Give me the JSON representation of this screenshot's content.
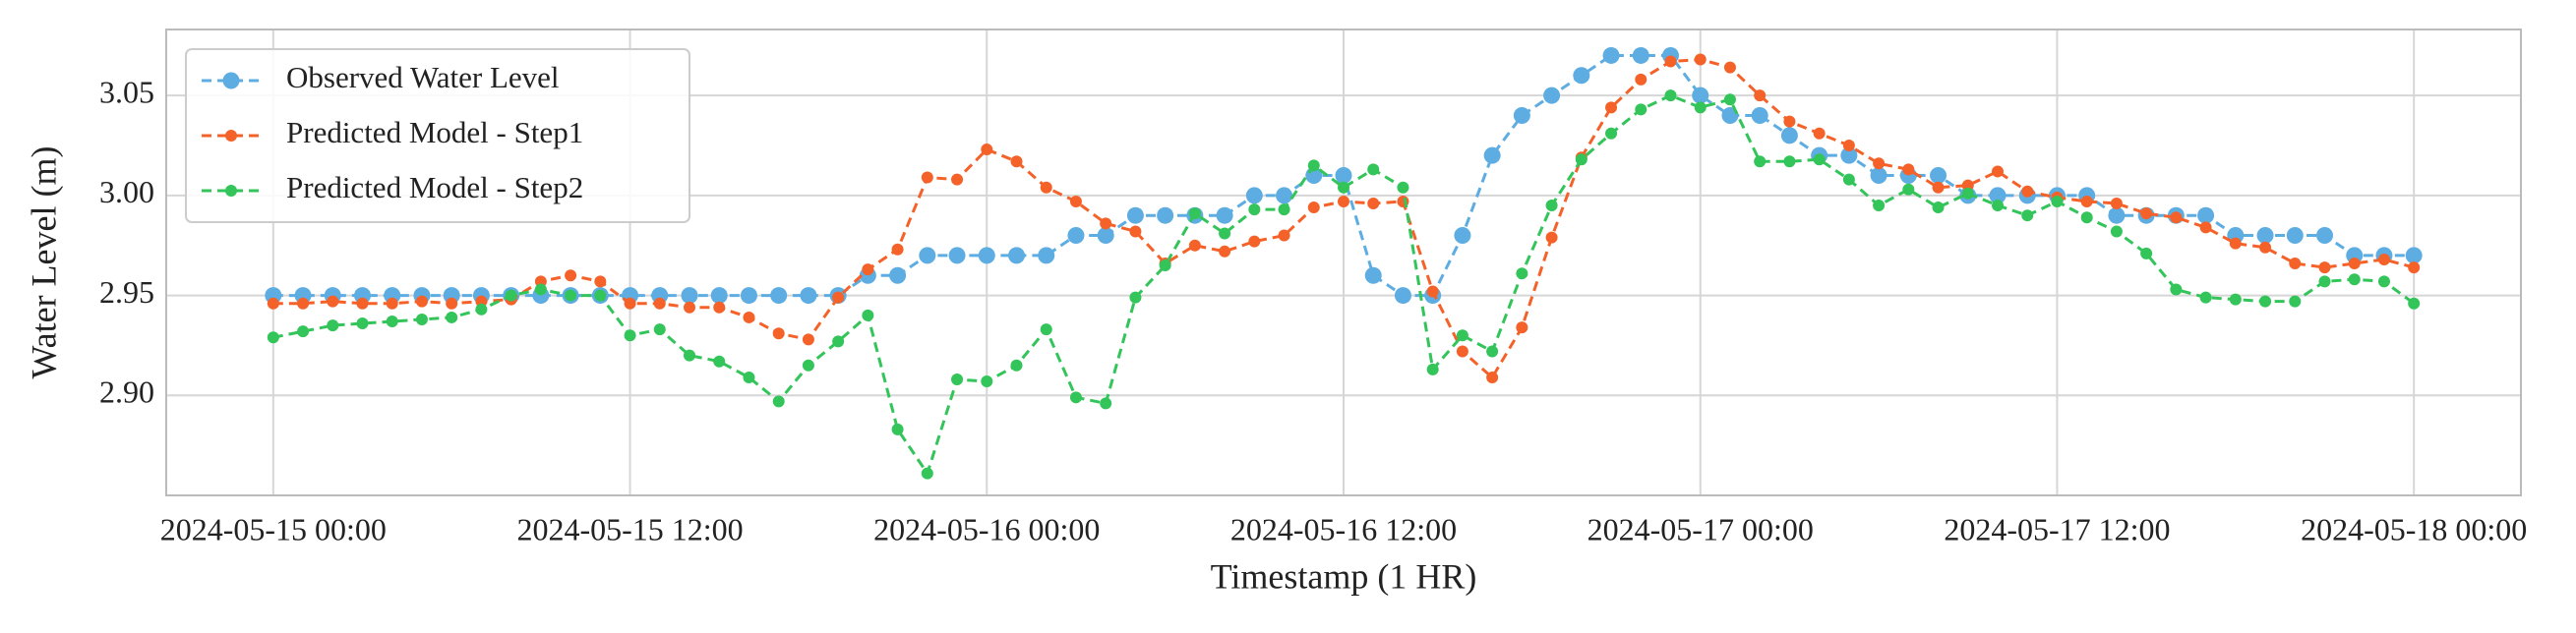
{
  "chart_data": {
    "type": "line",
    "xlabel": "Timestamp (1 HR)",
    "ylabel": "Water Level (m)",
    "x": [
      "2024-05-15 00:00",
      "2024-05-15 01:00",
      "2024-05-15 02:00",
      "2024-05-15 03:00",
      "2024-05-15 04:00",
      "2024-05-15 05:00",
      "2024-05-15 06:00",
      "2024-05-15 07:00",
      "2024-05-15 08:00",
      "2024-05-15 09:00",
      "2024-05-15 10:00",
      "2024-05-15 11:00",
      "2024-05-15 12:00",
      "2024-05-15 13:00",
      "2024-05-15 14:00",
      "2024-05-15 15:00",
      "2024-05-15 16:00",
      "2024-05-15 17:00",
      "2024-05-15 18:00",
      "2024-05-15 19:00",
      "2024-05-15 20:00",
      "2024-05-15 21:00",
      "2024-05-15 22:00",
      "2024-05-15 23:00",
      "2024-05-16 00:00",
      "2024-05-16 01:00",
      "2024-05-16 02:00",
      "2024-05-16 03:00",
      "2024-05-16 04:00",
      "2024-05-16 05:00",
      "2024-05-16 06:00",
      "2024-05-16 07:00",
      "2024-05-16 08:00",
      "2024-05-16 09:00",
      "2024-05-16 10:00",
      "2024-05-16 11:00",
      "2024-05-16 12:00",
      "2024-05-16 13:00",
      "2024-05-16 14:00",
      "2024-05-16 15:00",
      "2024-05-16 16:00",
      "2024-05-16 17:00",
      "2024-05-16 18:00",
      "2024-05-16 19:00",
      "2024-05-16 20:00",
      "2024-05-16 21:00",
      "2024-05-16 22:00",
      "2024-05-16 23:00",
      "2024-05-17 00:00",
      "2024-05-17 01:00",
      "2024-05-17 02:00",
      "2024-05-17 03:00",
      "2024-05-17 04:00",
      "2024-05-17 05:00",
      "2024-05-17 06:00",
      "2024-05-17 07:00",
      "2024-05-17 08:00",
      "2024-05-17 09:00",
      "2024-05-17 10:00",
      "2024-05-17 11:00",
      "2024-05-17 12:00",
      "2024-05-17 13:00",
      "2024-05-17 14:00",
      "2024-05-17 15:00",
      "2024-05-17 16:00",
      "2024-05-17 17:00",
      "2024-05-17 18:00",
      "2024-05-17 19:00",
      "2024-05-17 20:00",
      "2024-05-17 21:00",
      "2024-05-17 22:00",
      "2024-05-17 23:00",
      "2024-05-18 00:00"
    ],
    "series": [
      {
        "name": "Observed Water Level",
        "color": "#5dade2",
        "values": [
          2.95,
          2.95,
          2.95,
          2.95,
          2.95,
          2.95,
          2.95,
          2.95,
          2.95,
          2.95,
          2.95,
          2.95,
          2.95,
          2.95,
          2.95,
          2.95,
          2.95,
          2.95,
          2.95,
          2.95,
          2.96,
          2.96,
          2.97,
          2.97,
          2.97,
          2.97,
          2.97,
          2.98,
          2.98,
          2.99,
          2.99,
          2.99,
          2.99,
          3.0,
          3.0,
          3.01,
          3.01,
          2.96,
          2.95,
          2.95,
          2.98,
          3.02,
          3.04,
          3.05,
          3.06,
          3.07,
          3.07,
          3.07,
          3.05,
          3.04,
          3.04,
          3.03,
          3.02,
          3.02,
          3.01,
          3.01,
          3.01,
          3.0,
          3.0,
          3.0,
          3.0,
          3.0,
          2.99,
          2.99,
          2.99,
          2.99,
          2.98,
          2.98,
          2.98,
          2.98,
          2.97,
          2.97,
          2.97
        ]
      },
      {
        "name": "Predicted Model - Step1",
        "color": "#f4622a",
        "values": [
          2.946,
          2.946,
          2.947,
          2.946,
          2.946,
          2.947,
          2.946,
          2.947,
          2.948,
          2.957,
          2.96,
          2.957,
          2.946,
          2.946,
          2.944,
          2.944,
          2.939,
          2.931,
          2.928,
          2.949,
          2.963,
          2.973,
          3.009,
          3.008,
          3.023,
          3.017,
          3.004,
          2.997,
          2.986,
          2.982,
          2.966,
          2.975,
          2.972,
          2.977,
          2.98,
          2.994,
          2.997,
          2.996,
          2.997,
          2.952,
          2.922,
          2.909,
          2.934,
          2.979,
          3.019,
          3.044,
          3.058,
          3.067,
          3.068,
          3.064,
          3.05,
          3.037,
          3.031,
          3.025,
          3.016,
          3.013,
          3.004,
          3.005,
          3.012,
          3.002,
          2.999,
          2.997,
          2.996,
          2.991,
          2.989,
          2.984,
          2.976,
          2.974,
          2.966,
          2.964,
          2.966,
          2.968,
          2.964
        ]
      },
      {
        "name": "Predicted Model - Step2",
        "color": "#33c45a",
        "values": [
          2.929,
          2.932,
          2.935,
          2.936,
          2.937,
          2.938,
          2.939,
          2.943,
          2.95,
          2.953,
          2.95,
          2.95,
          2.93,
          2.933,
          2.92,
          2.917,
          2.909,
          2.897,
          2.915,
          2.927,
          2.94,
          2.883,
          2.861,
          2.908,
          2.907,
          2.915,
          2.933,
          2.899,
          2.896,
          2.949,
          2.965,
          2.991,
          2.981,
          2.993,
          2.993,
          3.015,
          3.004,
          3.013,
          3.004,
          2.913,
          2.93,
          2.922,
          2.961,
          2.995,
          3.018,
          3.031,
          3.043,
          3.05,
          3.044,
          3.048,
          3.017,
          3.017,
          3.018,
          3.008,
          2.995,
          3.003,
          2.994,
          3.001,
          2.995,
          2.99,
          2.997,
          2.989,
          2.982,
          2.971,
          2.953,
          2.949,
          2.948,
          2.947,
          2.947,
          2.957,
          2.958,
          2.957,
          2.946
        ]
      }
    ],
    "xlim": [
      "2024-05-14 20:24",
      "2024-05-18 03:36"
    ],
    "xticks": [
      "2024-05-15 00:00",
      "2024-05-15 12:00",
      "2024-05-16 00:00",
      "2024-05-16 12:00",
      "2024-05-17 00:00",
      "2024-05-17 12:00",
      "2024-05-18 00:00"
    ],
    "ylim": [
      2.85,
      3.083
    ],
    "yticks": [
      {
        "value": 2.9,
        "label": "2.90"
      },
      2.95,
      {
        "value": 3.0,
        "label": "3.00"
      },
      3.05
    ],
    "grid": true,
    "legend": "upper left",
    "linestyle": "dashed"
  }
}
